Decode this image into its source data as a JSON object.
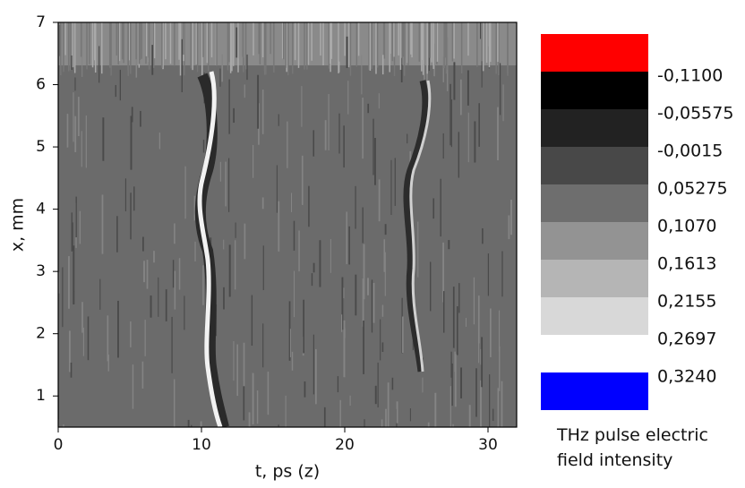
{
  "chart_data": {
    "type": "heatmap",
    "x_label": "t, ps (z)",
    "y_label": "x, mm",
    "xlim": [
      0,
      32
    ],
    "xticks": [
      0,
      10,
      20,
      30
    ],
    "ylim": [
      0.5,
      7
    ],
    "yticks": [
      1,
      2,
      3,
      4,
      5,
      6,
      7
    ],
    "colorbar": {
      "label": "THz pulse electric field intensity",
      "ticks": [
        {
          "value": -0.11,
          "label": "-0,1100"
        },
        {
          "value": -0.05575,
          "label": "-0,05575"
        },
        {
          "value": -0.0015,
          "label": "-0,0015"
        },
        {
          "value": 0.05275,
          "label": "0,05275"
        },
        {
          "value": 0.107,
          "label": "0,1070"
        },
        {
          "value": 0.1613,
          "label": "0,1613"
        },
        {
          "value": 0.2155,
          "label": "0,2155"
        },
        {
          "value": 0.2697,
          "label": "0,2697"
        },
        {
          "value": 0.324,
          "label": "0,3240"
        }
      ],
      "colors": [
        "#ff0000",
        "#000000",
        "#222222",
        "#484848",
        "#6e6e6e",
        "#939393",
        "#b5b5b5",
        "#d8d8d8",
        "#ffffff",
        "#0000ff"
      ]
    }
  }
}
